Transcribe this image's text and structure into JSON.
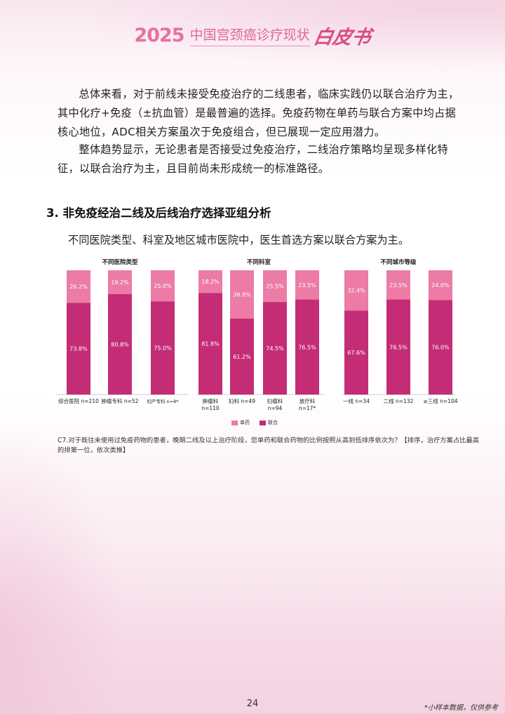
{
  "header": {
    "year": "2025",
    "title": "中国宫颈癌诊疗现状",
    "book": "白皮书"
  },
  "paragraphs": [
    "总体来看，对于前线未接受免疫治疗的二线患者，临床实践仍以联合治疗为主，其中化疗+免疫（±抗血管）是最普遍的选择。免疫药物在单药与联合方案中均占据核心地位，ADC相关方案虽次于免疫组合，但已展现一定应用潜力。",
    "整体趋势显示，无论患者是否接受过免疫治疗，二线治疗策略均呈现多样化特征，以联合治疗为主，且目前尚未形成统一的标准路径。"
  ],
  "section": {
    "title": "3. 非免疫经治二线及后线治疗选择亚组分析",
    "intro": "不同医院类型、科室及地区城市医院中，医生首选方案以联合方案为主。"
  },
  "chart_data": {
    "type": "bar",
    "stacked": true,
    "colors": {
      "单药": "#ec7ba6",
      "联合": "#c42d75"
    },
    "legend": [
      "单药",
      "联合"
    ],
    "groups": [
      {
        "title": "不同医院类型",
        "categories": [
          "综合医院 n=210",
          "肿瘤专科 n=52",
          "妇产专科 n=8*"
        ],
        "series": [
          {
            "name": "单药",
            "values": [
              26.2,
              19.2,
              25.0
            ]
          },
          {
            "name": "联合",
            "values": [
              73.8,
              80.8,
              75.0
            ]
          }
        ]
      },
      {
        "title": "不同科室",
        "categories": [
          "肿瘤科 n=110",
          "妇科 n=49",
          "妇瘤科 n=94",
          "放疗科 n=17*"
        ],
        "series": [
          {
            "name": "单药",
            "values": [
              18.2,
              38.8,
              25.5,
              23.5
            ]
          },
          {
            "name": "联合",
            "values": [
              81.8,
              61.2,
              74.5,
              76.5
            ]
          }
        ]
      },
      {
        "title": "不同城市等级",
        "categories": [
          "一线 n=34",
          "二线 n=132",
          "≥三线 n=104"
        ],
        "series": [
          {
            "name": "单药",
            "values": [
              32.4,
              23.5,
              24.0
            ]
          },
          {
            "name": "联合",
            "values": [
              67.6,
              76.5,
              76.0
            ]
          }
        ]
      }
    ],
    "ylim": [
      0,
      100
    ]
  },
  "note": "C7.对于既往未使用过免疫药物的患者，晚期二线及以上治疗阶段，您单药和联合药物的比例按照从高到低排序依次为？【排序，治疗方案占比最高的排第一位，依次类推】",
  "page_number": "24",
  "footnote": "*小样本数据，仅供参考"
}
